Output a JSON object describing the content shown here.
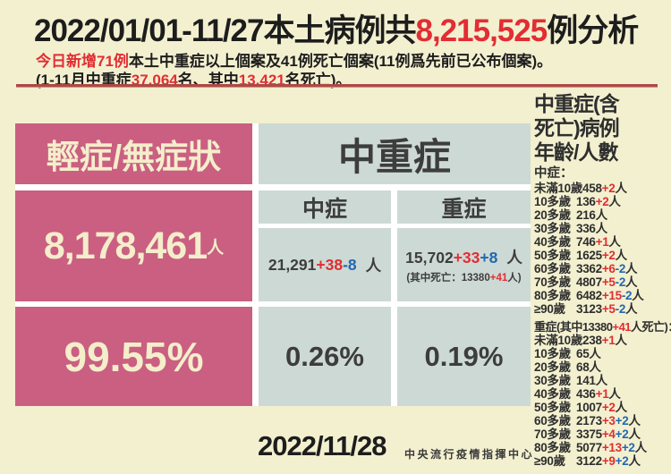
{
  "colors": {
    "background": "#f3f0d0",
    "pink": "#ca5f82",
    "grayblue": "#cdd9d4",
    "cream_text": "#f4eecb",
    "red": "#e22d33",
    "blue": "#2268b2",
    "divider_red": "#ad4a46"
  },
  "header": {
    "title_prefix": "2022/01/01-11/27本土病例共",
    "title_number": "8,215,525",
    "title_suffix": "例分析",
    "line1_red": "今日新增71例",
    "line1_black": "本土中重症以上個案及41例死亡個案(11例爲先前已公布個案)。",
    "line2_seg1": "(1-11月中重症",
    "line2_red1": "37,064",
    "line2_seg2": "名、其中",
    "line2_red2": "13,421",
    "line2_seg3": "名死亡)。"
  },
  "mild": {
    "header": "輕症/無症狀",
    "count": "8,178,461",
    "unit": "人",
    "percent": "99.55%"
  },
  "moderate_severe": {
    "header": "中重症",
    "moderate": {
      "label": "中症",
      "base": "21,291",
      "add": "+38",
      "sub": "-8",
      "unit": "人",
      "percent": "0.26%"
    },
    "severe": {
      "label": "重症",
      "base": "15,702",
      "add": "+33",
      "sub": "+8",
      "unit": "人",
      "note_pre": "(其中死亡：",
      "note_base": "13380",
      "note_add": "+41",
      "note_post": "人)",
      "percent": "0.19%"
    }
  },
  "sidebar": {
    "title_line1": "中重症(含",
    "title_line2": "死亡)病例",
    "title_line3": "年齡/人數",
    "unit": "人",
    "moderate_label": "中症：",
    "moderate_rows": [
      {
        "age": "未滿10歲",
        "num": "458",
        "add": "+2",
        "sub": ""
      },
      {
        "age": "10多歲",
        "num": "136",
        "add": "+2",
        "sub": ""
      },
      {
        "age": "20多歲",
        "num": "216",
        "add": "",
        "sub": ""
      },
      {
        "age": "30多歲",
        "num": "336",
        "add": "",
        "sub": ""
      },
      {
        "age": "40多歲",
        "num": "746",
        "add": "+1",
        "sub": ""
      },
      {
        "age": "50多歲",
        "num": "1625",
        "add": "+2",
        "sub": ""
      },
      {
        "age": "60多歲",
        "num": "3362",
        "add": "+6",
        "sub": "-2"
      },
      {
        "age": "70多歲",
        "num": "4807",
        "add": "+5",
        "sub": "-2"
      },
      {
        "age": "80多歲",
        "num": "6482",
        "add": "+15",
        "sub": "-2"
      },
      {
        "age": "≥90歲",
        "num": "3123",
        "add": "+5",
        "sub": "-2"
      }
    ],
    "severe_label_pre": "重症(其中13380",
    "severe_label_red": "+41",
    "severe_label_post": "人死亡)：",
    "severe_rows": [
      {
        "age": "未滿10歲",
        "num": "238",
        "add": "+1",
        "sub": ""
      },
      {
        "age": "10多歲",
        "num": "65",
        "add": "",
        "sub": ""
      },
      {
        "age": "20多歲",
        "num": "68",
        "add": "",
        "sub": ""
      },
      {
        "age": "30多歲",
        "num": "141",
        "add": "",
        "sub": ""
      },
      {
        "age": "40多歲",
        "num": "436",
        "add": "+1",
        "sub": ""
      },
      {
        "age": "50多歲",
        "num": "1007",
        "add": "+2",
        "sub": ""
      },
      {
        "age": "60多歲",
        "num": "2173",
        "add": "+3",
        "sub": "+2"
      },
      {
        "age": "70多歲",
        "num": "3375",
        "add": "+4",
        "sub": "+2"
      },
      {
        "age": "80多歲",
        "num": "5077",
        "add": "+13",
        "sub": "+2"
      },
      {
        "age": "≥90歲",
        "num": "3122",
        "add": "+9",
        "sub": "+2"
      }
    ]
  },
  "footer": {
    "date": "2022/11/28",
    "agency": "中央流行疫情指揮中心"
  }
}
